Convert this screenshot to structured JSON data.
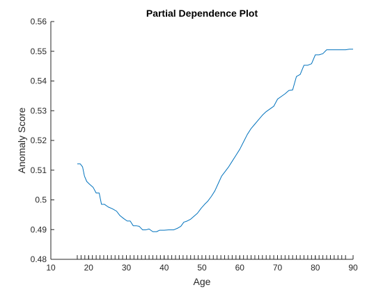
{
  "chart_data": {
    "type": "line",
    "title": "Partial Dependence Plot",
    "xlabel": "Age",
    "ylabel": "Anomaly Score",
    "xlim": [
      10,
      90
    ],
    "ylim": [
      0.48,
      0.56
    ],
    "xticks": [
      10,
      20,
      30,
      40,
      50,
      60,
      70,
      80,
      90
    ],
    "xtick_labels": [
      "10",
      "20",
      "30",
      "40",
      "50",
      "60",
      "70",
      "80",
      "90"
    ],
    "yticks": [
      0.48,
      0.49,
      0.5,
      0.51,
      0.52,
      0.53,
      0.54,
      0.55,
      0.56
    ],
    "ytick_labels": [
      "0.48",
      "0.49",
      "0.5",
      "0.51",
      "0.52",
      "0.53",
      "0.54",
      "0.55",
      "0.56"
    ],
    "x_rug": [
      17,
      18,
      19,
      20,
      21,
      22,
      23,
      24,
      25,
      26,
      27,
      28,
      29,
      30,
      31,
      32,
      33,
      34,
      35,
      36,
      37,
      38,
      39,
      40,
      41,
      42,
      43,
      44,
      45,
      46,
      47,
      48,
      49,
      50,
      51,
      52,
      53,
      54,
      55,
      56,
      57,
      58,
      59,
      60,
      61,
      62,
      63,
      64,
      65,
      66,
      67,
      68,
      69,
      70,
      71,
      72,
      73,
      74,
      75,
      76,
      77,
      78,
      79,
      80,
      81,
      82,
      83,
      84,
      85,
      86,
      87,
      88,
      90
    ],
    "grid": false,
    "series": [
      {
        "color": "#0072BD",
        "x": [
          17,
          17.8,
          18.4,
          18.9,
          19.5,
          20.3,
          21.2,
          22.0,
          22.8,
          23.4,
          24.2,
          25.2,
          26.3,
          27.4,
          28.3,
          29.3,
          30.2,
          31.0,
          31.8,
          32.6,
          33.4,
          34.3,
          35.1,
          36.0,
          37.0,
          38.0,
          38.8,
          40.0,
          41.2,
          42.5,
          43.6,
          44.4,
          45.2,
          46.1,
          47.0,
          47.9,
          48.8,
          49.8,
          50.7,
          51.5,
          52.5,
          53.4,
          54.3,
          55.2,
          56.1,
          57.0,
          58.0,
          59.0,
          60.0,
          61.0,
          62.0,
          63.0,
          64.0,
          65.0,
          66.0,
          67.0,
          68.0,
          69.0,
          70.0,
          71.0,
          72.0,
          73.0,
          74.0,
          75.0,
          76.0,
          77.0,
          78.0,
          79.0,
          80.0,
          81.0,
          82.0,
          83.0,
          84.0,
          85.0,
          86.0,
          87.0,
          88.0,
          89.0,
          90.0
        ],
        "values": [
          0.5121,
          0.5121,
          0.5111,
          0.508,
          0.5062,
          0.5052,
          0.5042,
          0.5023,
          0.5023,
          0.4985,
          0.4985,
          0.4976,
          0.497,
          0.4962,
          0.4947,
          0.4937,
          0.4929,
          0.4929,
          0.4913,
          0.4913,
          0.4911,
          0.4899,
          0.4899,
          0.4902,
          0.4893,
          0.4893,
          0.4898,
          0.4898,
          0.4899,
          0.4899,
          0.4905,
          0.4911,
          0.4925,
          0.4929,
          0.4935,
          0.4945,
          0.4955,
          0.4972,
          0.4985,
          0.4995,
          0.5012,
          0.503,
          0.5055,
          0.508,
          0.5095,
          0.511,
          0.513,
          0.515,
          0.517,
          0.5195,
          0.522,
          0.524,
          0.5255,
          0.527,
          0.5285,
          0.5297,
          0.5306,
          0.5315,
          0.5339,
          0.5348,
          0.5357,
          0.5368,
          0.537,
          0.5415,
          0.5422,
          0.5453,
          0.5453,
          0.5458,
          0.5488,
          0.5488,
          0.5492,
          0.5505,
          0.5505,
          0.5505,
          0.5505,
          0.5505,
          0.5505,
          0.5507,
          0.5507
        ]
      }
    ]
  }
}
